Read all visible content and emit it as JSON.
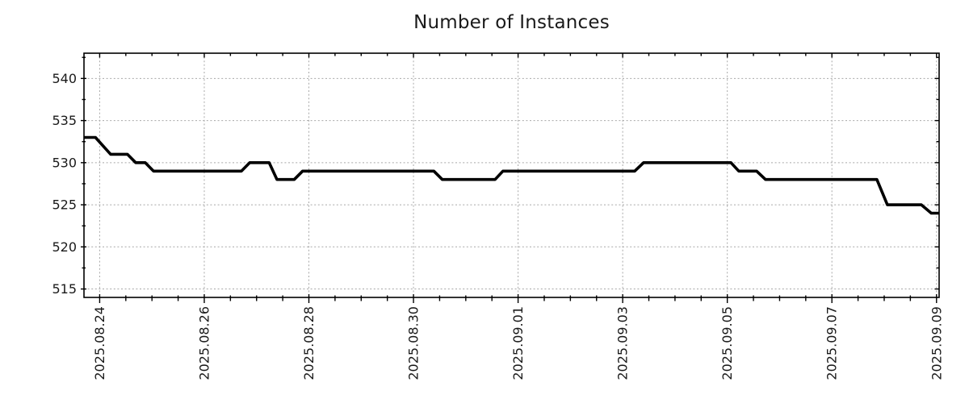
{
  "page": {
    "background": "#ffffff"
  },
  "chart_data": {
    "type": "line",
    "title": "Number of Instances",
    "grid": {
      "show": true,
      "style": "dotted",
      "color": "#a8a8a8"
    },
    "legend": "none",
    "x_axis": {
      "kind": "date",
      "tick_labels": [
        "2025.08.24",
        "2025.08.26",
        "2025.08.28",
        "2025.08.30",
        "2025.09.01",
        "2025.09.03",
        "2025.09.05",
        "2025.09.07",
        "2025.09.09"
      ],
      "major_tick_days": [
        0,
        2,
        4,
        6,
        8,
        10,
        12,
        14,
        16
      ],
      "minor_tick_step_days": 0.5,
      "xlim_days": [
        -0.3,
        16.05
      ],
      "label_rotation_deg": 90,
      "day_zero": "2025.08.24"
    },
    "y_axis": {
      "tick_labels": [
        "515",
        "520",
        "525",
        "530",
        "535",
        "540"
      ],
      "major_ticks": [
        515,
        520,
        525,
        530,
        535,
        540
      ],
      "minor_tick_step": 2.5,
      "ylim": [
        514,
        543
      ]
    },
    "series": [
      {
        "name": "Number of Instances",
        "color": "#000000",
        "line_width": 3.6,
        "points_days_value": [
          [
            -0.3,
            533
          ],
          [
            -0.08,
            533
          ],
          [
            0.21,
            531
          ],
          [
            0.53,
            531
          ],
          [
            0.69,
            530
          ],
          [
            0.87,
            530
          ],
          [
            1.03,
            529
          ],
          [
            2.71,
            529
          ],
          [
            2.87,
            530
          ],
          [
            3.24,
            530
          ],
          [
            3.39,
            528
          ],
          [
            3.72,
            528
          ],
          [
            3.88,
            529
          ],
          [
            6.39,
            529
          ],
          [
            6.55,
            528
          ],
          [
            7.56,
            528
          ],
          [
            7.71,
            529
          ],
          [
            10.23,
            529
          ],
          [
            10.4,
            530
          ],
          [
            12.07,
            530
          ],
          [
            12.22,
            529
          ],
          [
            12.56,
            529
          ],
          [
            12.73,
            528
          ],
          [
            14.86,
            528
          ],
          [
            15.06,
            525
          ],
          [
            15.71,
            525
          ],
          [
            15.9,
            524
          ],
          [
            16.05,
            524
          ]
        ]
      }
    ],
    "colors": {
      "line": "#000000",
      "grid": "#a8a8a8",
      "axis": "#000000",
      "text": "#1a1a1a",
      "background": "#ffffff"
    }
  }
}
